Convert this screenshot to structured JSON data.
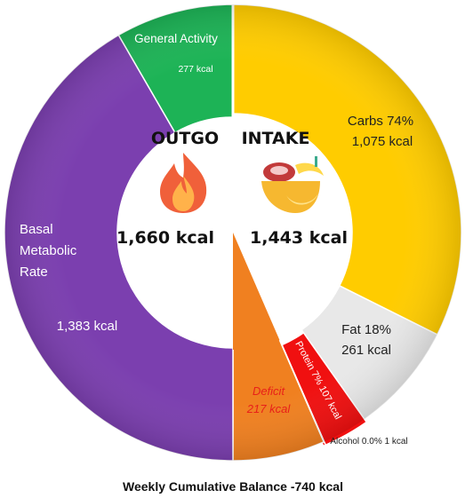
{
  "chart_data": {
    "type": "pie",
    "subtype": "split donut",
    "title": "Weekly Cumulative Balance -740 kcal",
    "outgo": {
      "heading": "OUTGO",
      "total": "1,660 kcal",
      "total_value": 1660,
      "icon": "fire-icon",
      "slices": [
        {
          "name": "Basal Metabolic Rate",
          "lines": [
            "Basal",
            "Metabolic",
            "Rate"
          ],
          "value": 1383,
          "value_label": "1,383 kcal",
          "color": "#7B3FAF"
        },
        {
          "name": "General Activity",
          "lines": [
            "General Activity"
          ],
          "value": 277,
          "value_label": "277 kcal",
          "color": "#1DB356"
        }
      ]
    },
    "intake": {
      "heading": "INTAKE",
      "total": "1,443 kcal",
      "total_value": 1443,
      "icon": "food-bowl-icon",
      "slices": [
        {
          "name": "Carbs",
          "pct_label": "Carbs 74%",
          "value": 1075,
          "value_label": "1,075 kcal",
          "color": "#FFCC00"
        },
        {
          "name": "Fat",
          "pct_label": "Fat 18%",
          "value": 261,
          "value_label": "261 kcal",
          "color": "#E8E8E8"
        },
        {
          "name": "Protein",
          "label": "Protein 7% 107 kcal",
          "value": 107,
          "color": "#F01010"
        },
        {
          "name": "Alcohol",
          "label": "Alcohol 0.0% 1 kcal",
          "value": 1,
          "color": "#F01010"
        }
      ],
      "deficit": {
        "label": "Deficit",
        "value": 217,
        "value_label": "217 kcal",
        "color": "#F08020",
        "label_color": "#E8201A"
      }
    }
  }
}
